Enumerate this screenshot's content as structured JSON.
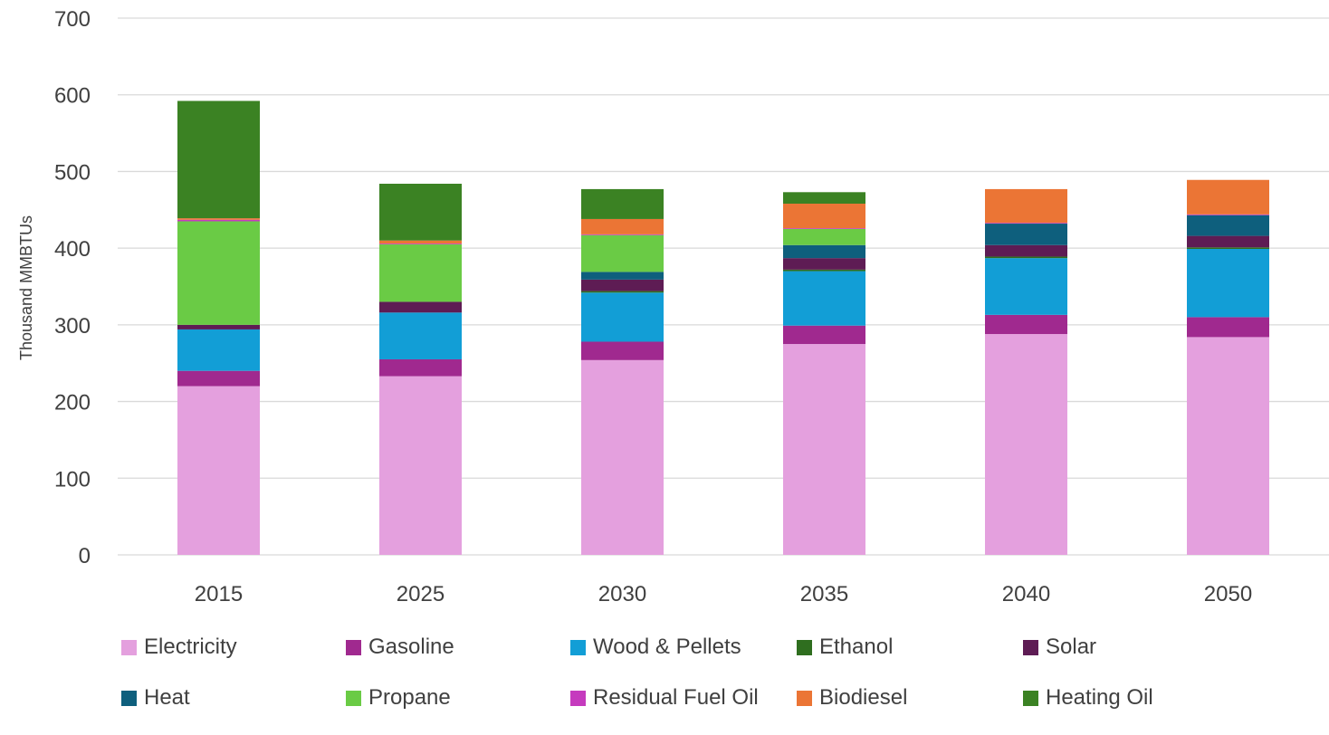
{
  "chart_data": {
    "type": "bar",
    "stacked": true,
    "categories": [
      "2015",
      "2025",
      "2030",
      "2035",
      "2040",
      "2050"
    ],
    "ylabel": "Thousand MMBTUs",
    "xlabel": "",
    "title": "",
    "ylim": [
      0,
      700
    ],
    "yticks": [
      0,
      100,
      200,
      300,
      400,
      500,
      600,
      700
    ],
    "grid": true,
    "legend_position": "bottom",
    "series": [
      {
        "name": "Electricity",
        "color": "#E4A0DE",
        "values": [
          220,
          233,
          254,
          275,
          288,
          284
        ]
      },
      {
        "name": "Gasoline",
        "color": "#A0298F",
        "values": [
          20,
          22,
          24,
          24,
          25,
          26
        ]
      },
      {
        "name": "Wood & Pellets",
        "color": "#129ED6",
        "values": [
          54,
          61,
          64,
          71,
          74,
          89
        ]
      },
      {
        "name": "Ethanol",
        "color": "#2F6E1F",
        "values": [
          0,
          0,
          2,
          2,
          2,
          2
        ]
      },
      {
        "name": "Solar",
        "color": "#5E1C54",
        "values": [
          6,
          14,
          15,
          15,
          15,
          15
        ]
      },
      {
        "name": "Heat",
        "color": "#0E5F7D",
        "values": [
          0,
          0,
          10,
          17,
          28,
          27
        ]
      },
      {
        "name": "Propane",
        "color": "#6ACB45",
        "values": [
          135,
          75,
          48,
          21,
          0,
          0
        ]
      },
      {
        "name": "Residual Fuel Oil",
        "color": "#C53BBE",
        "values": [
          2,
          1,
          1,
          1,
          1,
          1
        ]
      },
      {
        "name": "Biodiesel",
        "color": "#EB7535",
        "values": [
          2,
          4,
          20,
          32,
          44,
          45
        ]
      },
      {
        "name": "Heating Oil",
        "color": "#3B8223",
        "values": [
          153,
          74,
          39,
          15,
          0,
          0
        ]
      }
    ]
  },
  "legend": {
    "rows": [
      [
        "Electricity",
        "Gasoline",
        "Wood & Pellets",
        "Ethanol",
        "Solar"
      ],
      [
        "Heat",
        "Propane",
        "Residual Fuel Oil",
        "Biodiesel",
        "Heating Oil"
      ]
    ]
  }
}
